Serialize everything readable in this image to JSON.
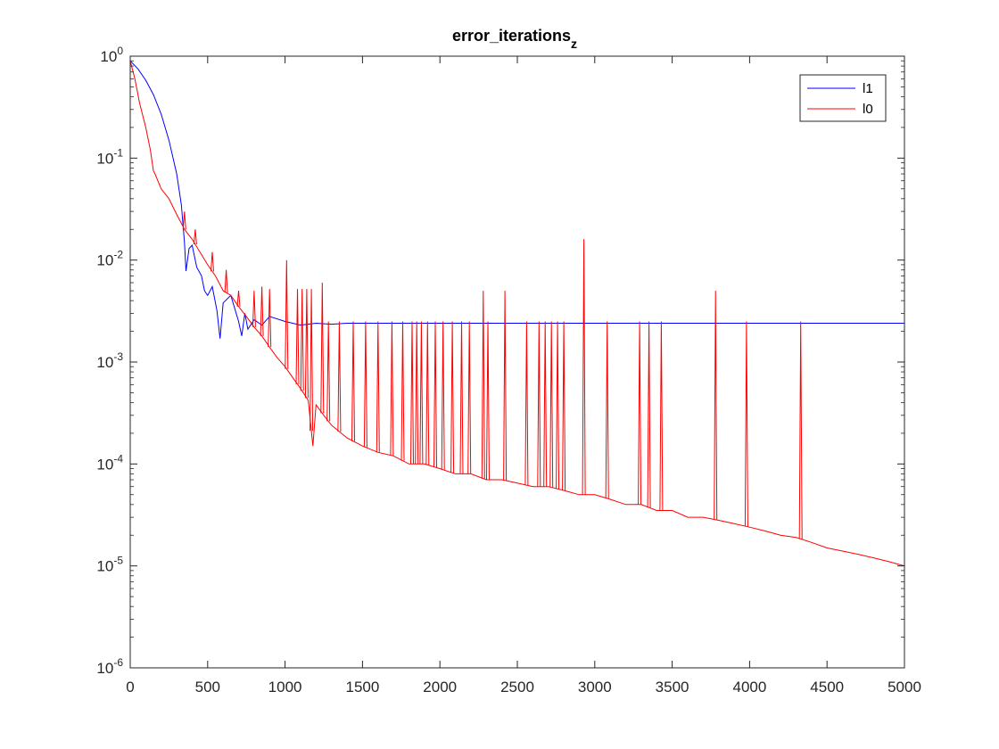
{
  "chart_data": {
    "type": "line",
    "title": "error_iterations",
    "title_subscript": "z",
    "xlabel": "",
    "ylabel": "",
    "xlim": [
      0,
      5000
    ],
    "ylim": [
      1e-06,
      1
    ],
    "yscale": "log",
    "grid": false,
    "legend_position": "top-right",
    "x_ticks": [
      0,
      500,
      1000,
      1500,
      2000,
      2500,
      3000,
      3500,
      4000,
      4500,
      5000
    ],
    "y_ticks": [
      {
        "value": 1,
        "base": "10",
        "exp": "0"
      },
      {
        "value": 0.1,
        "base": "10",
        "exp": "-1"
      },
      {
        "value": 0.01,
        "base": "10",
        "exp": "-2"
      },
      {
        "value": 0.001,
        "base": "10",
        "exp": "-3"
      },
      {
        "value": 0.0001,
        "base": "10",
        "exp": "-4"
      },
      {
        "value": 1e-05,
        "base": "10",
        "exp": "-5"
      },
      {
        "value": 1e-06,
        "base": "10",
        "exp": "-6"
      }
    ],
    "series": [
      {
        "name": "l1",
        "color": "#0000ff",
        "x": [
          0,
          50,
          100,
          150,
          200,
          250,
          300,
          330,
          350,
          360,
          380,
          400,
          430,
          460,
          480,
          500,
          530,
          560,
          580,
          600,
          650,
          700,
          720,
          740,
          760,
          800,
          850,
          900,
          1000,
          1100,
          1200,
          1300,
          1400,
          1600,
          2000,
          2500,
          3000,
          3500,
          4000,
          4500,
          5000
        ],
        "values": [
          0.9,
          0.75,
          0.58,
          0.42,
          0.27,
          0.15,
          0.07,
          0.035,
          0.015,
          0.0078,
          0.013,
          0.014,
          0.0085,
          0.007,
          0.005,
          0.0045,
          0.0055,
          0.0032,
          0.0017,
          0.0038,
          0.0045,
          0.0025,
          0.0018,
          0.003,
          0.0021,
          0.0026,
          0.0023,
          0.0028,
          0.0025,
          0.0023,
          0.0024,
          0.00235,
          0.0024,
          0.0024,
          0.0024,
          0.0024,
          0.0024,
          0.0024,
          0.0024,
          0.0024,
          0.0024
        ]
      },
      {
        "name": "l0",
        "color": "#ff0000",
        "x": [
          0,
          30,
          60,
          100,
          130,
          150,
          160,
          200,
          250,
          300,
          350,
          400,
          450,
          500,
          550,
          600,
          650,
          700,
          750,
          800,
          850,
          900,
          950,
          1000,
          1050,
          1100,
          1150,
          1180,
          1200,
          1250,
          1300,
          1400,
          1500,
          1600,
          1700,
          1800,
          1900,
          2000,
          2100,
          2200,
          2300,
          2400,
          2500,
          2600,
          2700,
          2800,
          2900,
          3000,
          3100,
          3200,
          3300,
          3400,
          3500,
          3600,
          3700,
          3800,
          3900,
          4000,
          4100,
          4200,
          4300,
          4400,
          4500,
          4600,
          4700,
          4800,
          4900,
          5000
        ],
        "values": [
          0.9,
          0.6,
          0.35,
          0.2,
          0.12,
          0.075,
          0.07,
          0.05,
          0.04,
          0.028,
          0.02,
          0.016,
          0.012,
          0.009,
          0.007,
          0.005,
          0.0045,
          0.0035,
          0.0028,
          0.0022,
          0.0018,
          0.0014,
          0.0011,
          0.0009,
          0.0007,
          0.00055,
          0.00042,
          0.00015,
          0.00038,
          0.0003,
          0.00024,
          0.00018,
          0.00015,
          0.00013,
          0.00012,
          0.0001,
          0.0001,
          9e-05,
          8e-05,
          8e-05,
          7e-05,
          7e-05,
          6.5e-05,
          6e-05,
          6e-05,
          5.5e-05,
          5e-05,
          5e-05,
          4.5e-05,
          4e-05,
          4e-05,
          3.5e-05,
          3.5e-05,
          3e-05,
          3e-05,
          2.8e-05,
          2.6e-05,
          2.4e-05,
          2.2e-05,
          2e-05,
          1.9e-05,
          1.7e-05,
          1.5e-05,
          1.4e-05,
          1.3e-05,
          1.2e-05,
          1.1e-05,
          1e-05
        ]
      }
    ],
    "spikes": {
      "series": "l0",
      "x": [
        350,
        420,
        530,
        620,
        700,
        800,
        850,
        900,
        1010,
        1080,
        1110,
        1140,
        1170,
        1240,
        1280,
        1350,
        1440,
        1520,
        1600,
        1690,
        1760,
        1820,
        1850,
        1880,
        1920,
        1970,
        2020,
        2080,
        2140,
        2190,
        2280,
        2310,
        2420,
        2560,
        2640,
        2680,
        2720,
        2760,
        2800,
        2930,
        3080,
        3290,
        3350,
        3430,
        3780,
        3980,
        4330
      ],
      "values": [
        0.03,
        0.02,
        0.012,
        0.008,
        0.005,
        0.005,
        0.0055,
        0.0052,
        0.01,
        0.0052,
        0.0052,
        0.0052,
        0.0052,
        0.006,
        0.0025,
        0.0025,
        0.0025,
        0.0025,
        0.0025,
        0.0025,
        0.0025,
        0.0025,
        0.0025,
        0.0025,
        0.0025,
        0.0025,
        0.0025,
        0.0025,
        0.0025,
        0.0025,
        0.005,
        0.0025,
        0.005,
        0.0025,
        0.0025,
        0.0025,
        0.0025,
        0.0025,
        0.0025,
        0.016,
        0.0025,
        0.0025,
        0.0025,
        0.0025,
        0.005,
        0.0025,
        0.0025
      ]
    }
  }
}
